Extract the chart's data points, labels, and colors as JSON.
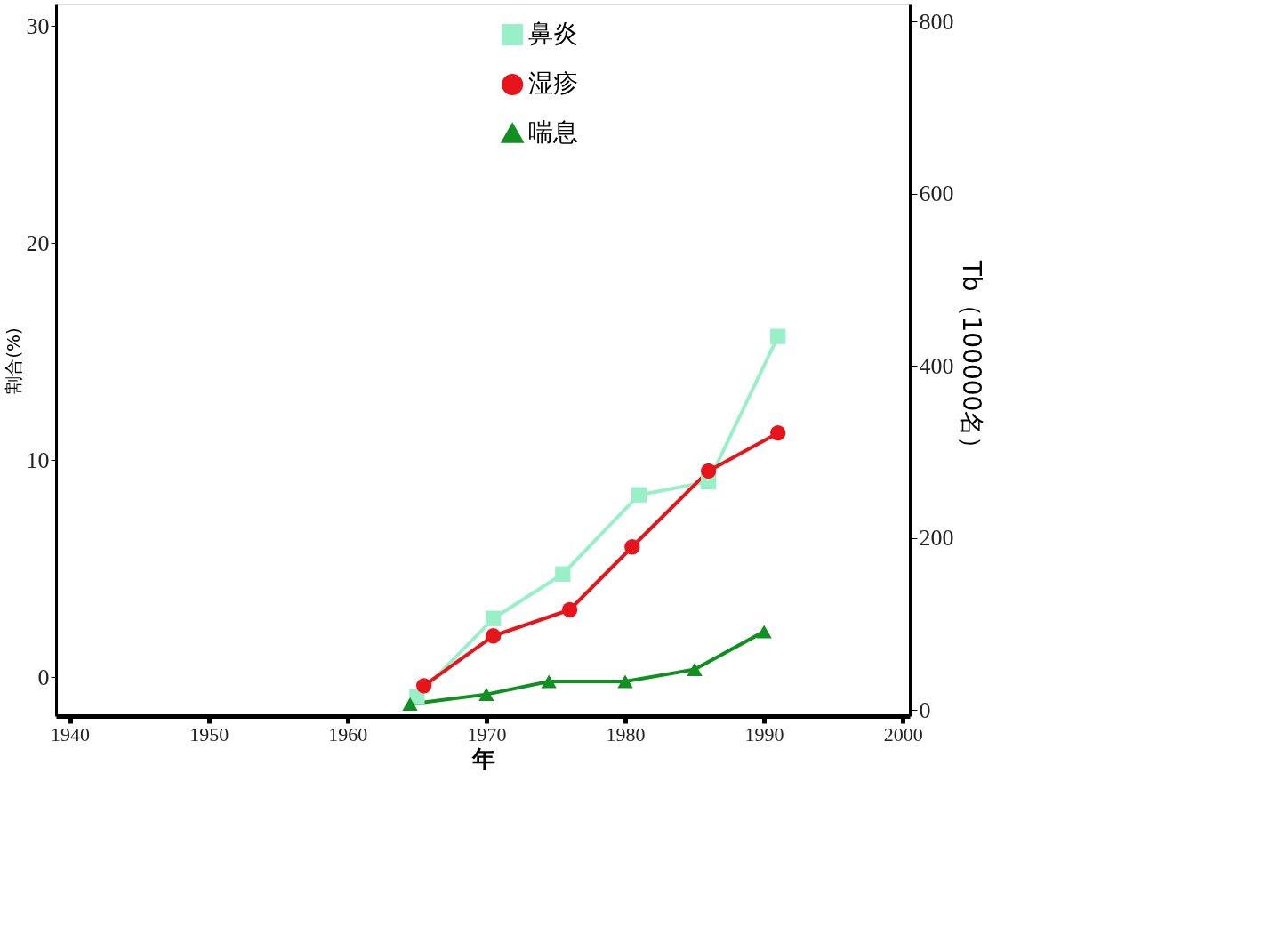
{
  "chart_data": {
    "type": "line",
    "xlabel": "年",
    "ylabel": "割合(%)",
    "y2label": "Tb（100000名）",
    "xlim": [
      1939,
      2000.5
    ],
    "xticks": [
      1940,
      1950,
      1960,
      1970,
      1980,
      1990,
      2000
    ],
    "ylim": [
      -1.8,
      31
    ],
    "yticks": [
      0,
      10,
      20,
      30
    ],
    "y2lim": [
      -7,
      820
    ],
    "y2ticks": [
      0,
      200,
      400,
      600,
      800
    ],
    "grid": false,
    "legend": "top",
    "line_style": "solid",
    "series": [
      {
        "name": "鼻炎",
        "color": "#99f0c8",
        "marker": "square",
        "x": [
          1965,
          1970.5,
          1975.5,
          1981,
          1986,
          1991
        ],
        "values": [
          -0.9,
          2.7,
          4.75,
          8.4,
          9.0,
          15.7
        ]
      },
      {
        "name": "湿疹",
        "color": "#e8141c",
        "marker": "circle",
        "x": [
          1965.5,
          1970.5,
          1976,
          1980.5,
          1986,
          1991
        ],
        "values": [
          -0.4,
          1.9,
          3.1,
          6.0,
          9.5,
          11.25
        ]
      },
      {
        "name": "喘息",
        "color": "#109020",
        "marker": "triangle",
        "x": [
          1964.5,
          1970,
          1974.5,
          1980,
          1985,
          1990
        ],
        "values": [
          -1.25,
          -0.8,
          -0.2,
          -0.2,
          0.35,
          2.1
        ]
      }
    ]
  }
}
